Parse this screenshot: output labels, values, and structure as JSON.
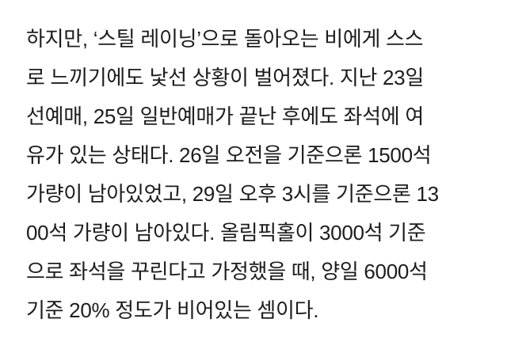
{
  "paragraph": {
    "lines": [
      "하지만, ‘스틸 레이닝’으로 돌아오는 비에게 스스",
      "로 느끼기에도 낯선 상황이 벌어졌다. 지난 23일",
      "선예매, 25일 일반예매가 끝난 후에도 좌석에 여",
      "유가 있는 상태다. 26일 오전을 기준으론 1500석",
      "가량이 남아있었고, 29일 오후 3시를 기준으론 13",
      "00석 가량이 남아있다. 올림픽홀이 3000석 기준",
      "으로 좌석을 꾸린다고 가정했을 때, 양일 6000석",
      "기준 20% 정도가 비어있는 셈이다."
    ]
  }
}
